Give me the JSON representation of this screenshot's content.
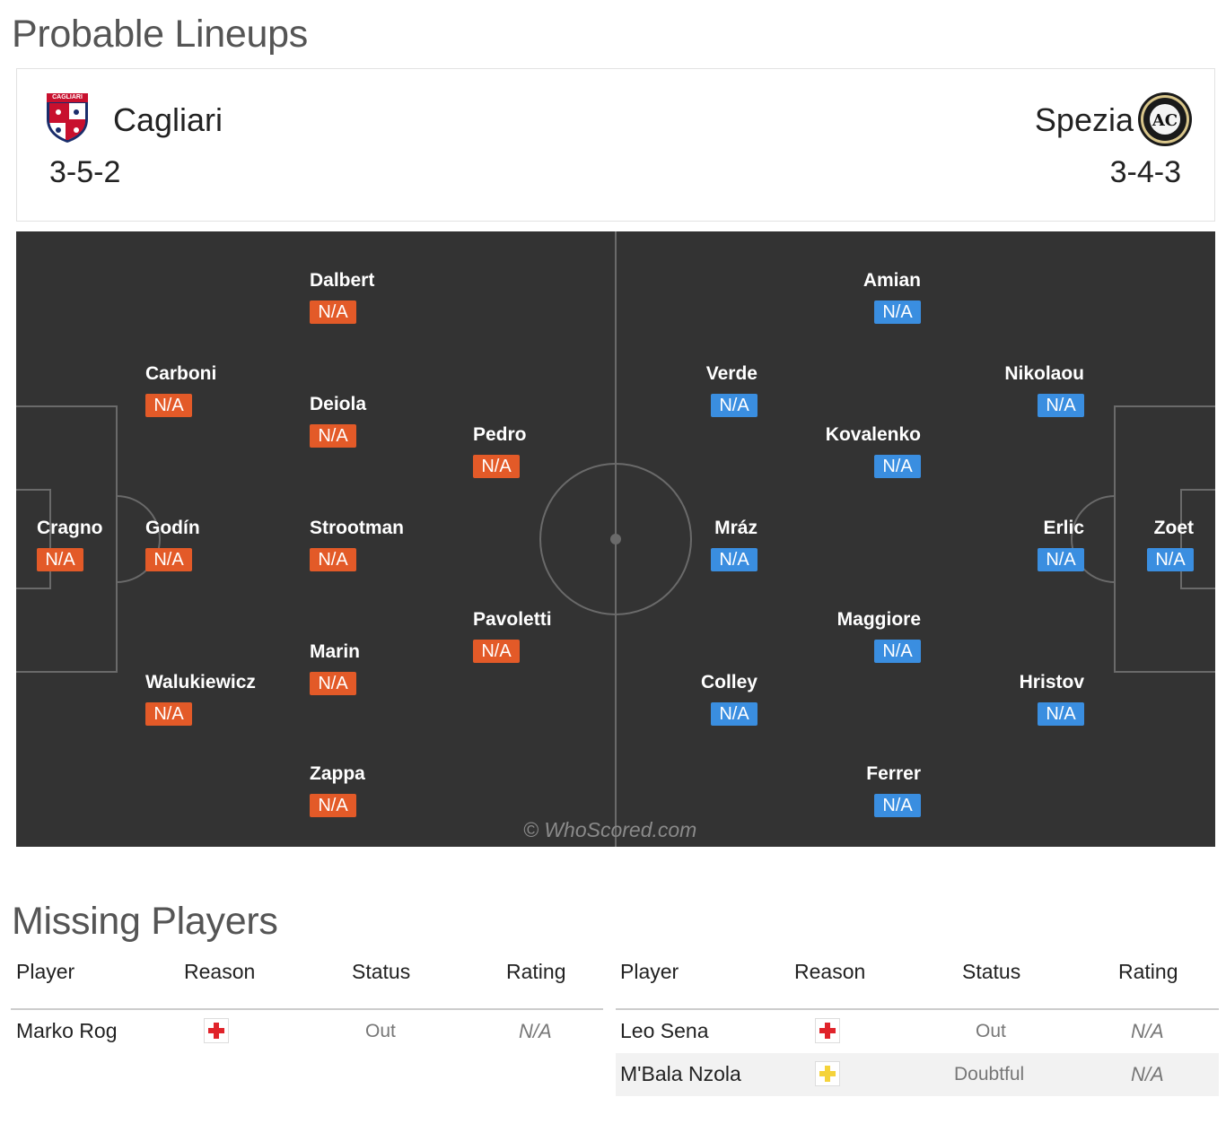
{
  "lineups": {
    "title": "Probable Lineups",
    "home": {
      "name": "Cagliari",
      "formation": "3-5-2",
      "crest_icon": "cagliari-crest-icon",
      "crest_text": "CAGLIARI"
    },
    "away": {
      "name": "Spezia",
      "formation": "3-4-3",
      "crest_icon": "spezia-crest-icon",
      "crest_text": "SPEZIA 1906"
    },
    "watermark": "© WhoScored.com",
    "home_color": "#e35a28",
    "away_color": "#3a8ee0",
    "pitch_color": "#333333",
    "home_players": [
      {
        "name": "Cragno",
        "rating": "N/A"
      },
      {
        "name": "Carboni",
        "rating": "N/A"
      },
      {
        "name": "Godín",
        "rating": "N/A"
      },
      {
        "name": "Walukiewicz",
        "rating": "N/A"
      },
      {
        "name": "Dalbert",
        "rating": "N/A"
      },
      {
        "name": "Deiola",
        "rating": "N/A"
      },
      {
        "name": "Strootman",
        "rating": "N/A"
      },
      {
        "name": "Marin",
        "rating": "N/A"
      },
      {
        "name": "Zappa",
        "rating": "N/A"
      },
      {
        "name": "Pedro",
        "rating": "N/A"
      },
      {
        "name": "Pavoletti",
        "rating": "N/A"
      }
    ],
    "away_players": [
      {
        "name": "Amian",
        "rating": "N/A"
      },
      {
        "name": "Verde",
        "rating": "N/A"
      },
      {
        "name": "Kovalenko",
        "rating": "N/A"
      },
      {
        "name": "Mráz",
        "rating": "N/A"
      },
      {
        "name": "Maggiore",
        "rating": "N/A"
      },
      {
        "name": "Colley",
        "rating": "N/A"
      },
      {
        "name": "Ferrer",
        "rating": "N/A"
      },
      {
        "name": "Nikolaou",
        "rating": "N/A"
      },
      {
        "name": "Erlic",
        "rating": "N/A"
      },
      {
        "name": "Hristov",
        "rating": "N/A"
      },
      {
        "name": "Zoet",
        "rating": "N/A"
      }
    ]
  },
  "missing": {
    "title": "Missing Players",
    "columns": [
      "Player",
      "Reason",
      "Status",
      "Rating"
    ],
    "home": [
      {
        "player": "Marko Rog",
        "reason_icon": "injury-red-cross-icon",
        "status": "Out",
        "rating": "N/A"
      }
    ],
    "away": [
      {
        "player": "Leo Sena",
        "reason_icon": "injury-red-cross-icon",
        "status": "Out",
        "rating": "N/A"
      },
      {
        "player": "M'Bala Nzola",
        "reason_icon": "doubtful-yellow-cross-icon",
        "status": "Doubtful",
        "rating": "N/A"
      }
    ]
  }
}
